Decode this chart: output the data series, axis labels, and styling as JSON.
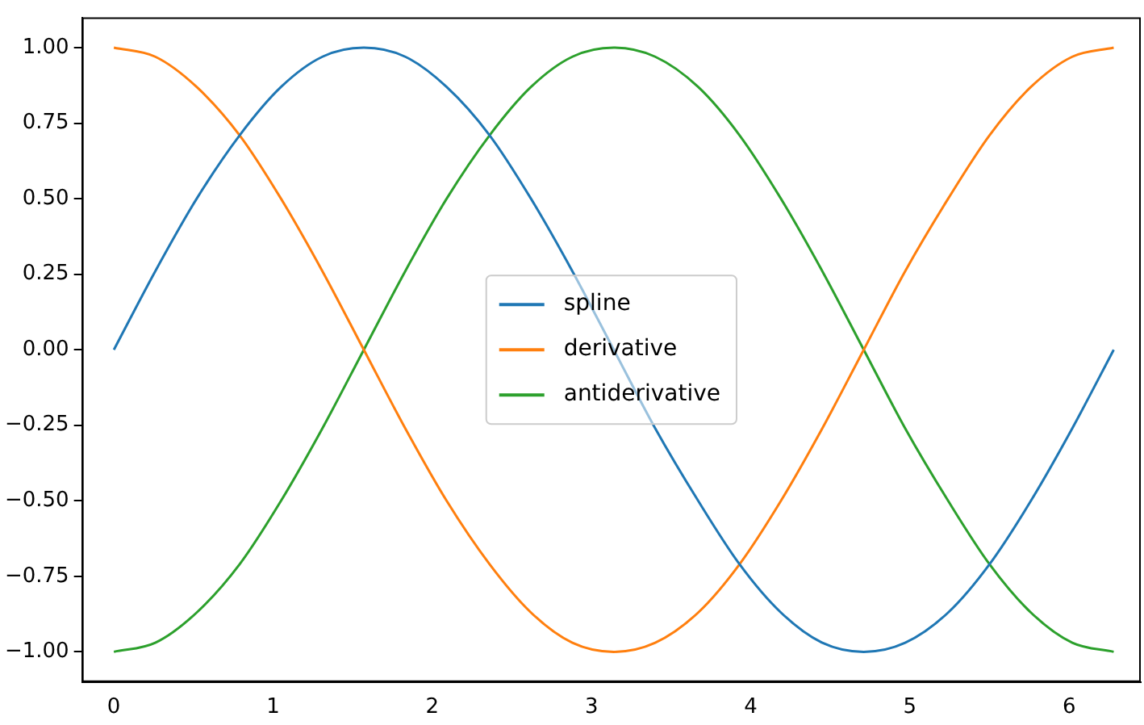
{
  "chart_data": {
    "type": "line",
    "x": [
      0,
      0.26,
      0.52,
      0.79,
      1.05,
      1.31,
      1.57,
      1.83,
      2.09,
      2.36,
      2.62,
      2.88,
      3.14,
      3.4,
      3.67,
      3.93,
      4.19,
      4.45,
      4.71,
      4.97,
      5.24,
      5.5,
      5.76,
      6.02,
      6.28
    ],
    "series": [
      {
        "name": "spline",
        "color": "#1f77b4",
        "values": [
          0,
          0.26,
          0.5,
          0.71,
          0.87,
          0.97,
          1,
          0.97,
          0.87,
          0.71,
          0.5,
          0.26,
          0,
          -0.26,
          -0.5,
          -0.71,
          -0.87,
          -0.97,
          -1,
          -0.97,
          -0.87,
          -0.71,
          -0.5,
          -0.26,
          0
        ]
      },
      {
        "name": "derivative",
        "color": "#ff7f0e",
        "values": [
          1,
          0.97,
          0.87,
          0.71,
          0.5,
          0.26,
          0,
          -0.26,
          -0.5,
          -0.71,
          -0.87,
          -0.97,
          -1,
          -0.97,
          -0.87,
          -0.71,
          -0.5,
          -0.26,
          0,
          0.26,
          0.5,
          0.71,
          0.87,
          0.97,
          1
        ]
      },
      {
        "name": "antiderivative",
        "color": "#2ca02c",
        "values": [
          -1,
          -0.97,
          -0.87,
          -0.71,
          -0.5,
          -0.26,
          0,
          0.26,
          0.5,
          0.71,
          0.87,
          0.97,
          1,
          0.97,
          0.87,
          0.71,
          0.5,
          0.26,
          0,
          -0.26,
          -0.5,
          -0.71,
          -0.87,
          -0.97,
          -1
        ]
      }
    ],
    "xlim": [
      -0.2,
      6.45
    ],
    "xticks": [
      0,
      1,
      2,
      3,
      4,
      5,
      6
    ],
    "ylim": [
      -1.1,
      1.1
    ],
    "yticks": [
      {
        "value": -1,
        "label": "−1.00"
      },
      {
        "value": -0.75,
        "label": "−0.75"
      },
      {
        "value": -0.5,
        "label": "−0.50"
      },
      {
        "value": -0.25,
        "label": "−0.25"
      },
      {
        "value": 0,
        "label": "0.00"
      },
      {
        "value": 0.25,
        "label": "0.25"
      },
      {
        "value": 0.5,
        "label": "0.50"
      },
      {
        "value": 0.75,
        "label": "0.75"
      },
      {
        "value": 1,
        "label": "1.00"
      }
    ],
    "grid": false,
    "legend": "center",
    "marker": "none",
    "line_style": "solid"
  }
}
